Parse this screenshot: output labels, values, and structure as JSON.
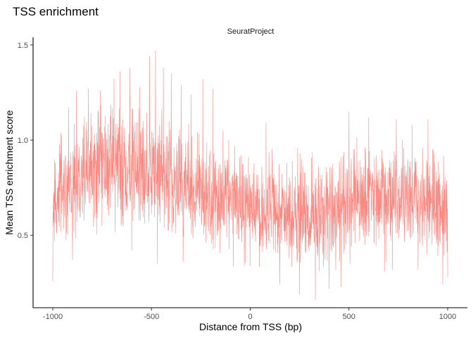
{
  "chart_data": {
    "type": "line",
    "title": "TSS enrichment",
    "facet_label": "SeuratProject",
    "xlabel": "Distance from TSS (bp)",
    "ylabel": "Mean TSS enrichment score",
    "xlim": [
      -1050,
      1050
    ],
    "ylim": [
      0.12,
      1.54
    ],
    "x_ticks": [
      -1000,
      -500,
      0,
      500,
      1000
    ],
    "x_tick_labels": [
      "-1000",
      "-500",
      "0",
      "500",
      "1000"
    ],
    "y_ticks": [
      0.5,
      1.0,
      1.5
    ],
    "y_tick_labels": [
      "0.5",
      "1.0",
      "1.5"
    ],
    "grid": false,
    "legend": "none",
    "line_color": "#F8766D",
    "series": [
      {
        "trend_x": [
          -1000,
          -950,
          -900,
          -850,
          -800,
          -750,
          -700,
          -650,
          -600,
          -550,
          -500,
          -450,
          -400,
          -350,
          -300,
          -250,
          -200,
          -150,
          -100,
          -50,
          0,
          50,
          100,
          150,
          200,
          250,
          300,
          350,
          400,
          450,
          500,
          550,
          600,
          650,
          700,
          750,
          800,
          850,
          900,
          950,
          1000
        ],
        "trend_mean": [
          0.66,
          0.72,
          0.78,
          0.82,
          0.84,
          0.86,
          0.86,
          0.86,
          0.85,
          0.84,
          0.83,
          0.82,
          0.8,
          0.78,
          0.76,
          0.74,
          0.72,
          0.7,
          0.69,
          0.68,
          0.66,
          0.63,
          0.62,
          0.62,
          0.61,
          0.6,
          0.6,
          0.61,
          0.62,
          0.64,
          0.66,
          0.68,
          0.7,
          0.7,
          0.7,
          0.7,
          0.69,
          0.68,
          0.68,
          0.66,
          0.62
        ],
        "trend_spread": [
          0.12,
          0.14,
          0.15,
          0.16,
          0.17,
          0.17,
          0.17,
          0.17,
          0.17,
          0.17,
          0.17,
          0.17,
          0.16,
          0.16,
          0.15,
          0.15,
          0.15,
          0.15,
          0.15,
          0.15,
          0.14,
          0.14,
          0.14,
          0.14,
          0.14,
          0.14,
          0.14,
          0.14,
          0.14,
          0.14,
          0.14,
          0.14,
          0.14,
          0.14,
          0.14,
          0.14,
          0.14,
          0.14,
          0.14,
          0.14,
          0.13
        ],
        "peaks": [
          {
            "x": -1000,
            "y": 0.26
          },
          {
            "x": -960,
            "y": 1.04
          },
          {
            "x": -920,
            "y": 1.17
          },
          {
            "x": -880,
            "y": 1.26
          },
          {
            "x": -820,
            "y": 1.27
          },
          {
            "x": -760,
            "y": 1.26
          },
          {
            "x": -690,
            "y": 1.32
          },
          {
            "x": -660,
            "y": 1.36
          },
          {
            "x": -610,
            "y": 1.38
          },
          {
            "x": -560,
            "y": 1.28
          },
          {
            "x": -510,
            "y": 1.44
          },
          {
            "x": -480,
            "y": 1.47
          },
          {
            "x": -440,
            "y": 1.38
          },
          {
            "x": -400,
            "y": 1.35
          },
          {
            "x": -350,
            "y": 1.29
          },
          {
            "x": -300,
            "y": 1.24
          },
          {
            "x": -240,
            "y": 1.32
          },
          {
            "x": -190,
            "y": 1.27
          },
          {
            "x": -900,
            "y": 0.37
          },
          {
            "x": -600,
            "y": 0.42
          },
          {
            "x": -470,
            "y": 0.35
          },
          {
            "x": -340,
            "y": 0.36
          },
          {
            "x": -30,
            "y": 0.34
          },
          {
            "x": 150,
            "y": 0.24
          },
          {
            "x": 250,
            "y": 0.19
          },
          {
            "x": 330,
            "y": 0.16
          },
          {
            "x": 400,
            "y": 0.22
          },
          {
            "x": 460,
            "y": 0.23
          },
          {
            "x": 680,
            "y": 0.31
          },
          {
            "x": 720,
            "y": 0.32
          },
          {
            "x": 850,
            "y": 0.32
          },
          {
            "x": 975,
            "y": 0.24
          },
          {
            "x": 1000,
            "y": 0.28
          },
          {
            "x": 500,
            "y": 1.15
          },
          {
            "x": 600,
            "y": 1.12
          },
          {
            "x": 740,
            "y": 1.11
          },
          {
            "x": 820,
            "y": 1.08
          },
          {
            "x": 900,
            "y": 1.11
          },
          {
            "x": 80,
            "y": 1.09
          }
        ]
      }
    ]
  }
}
